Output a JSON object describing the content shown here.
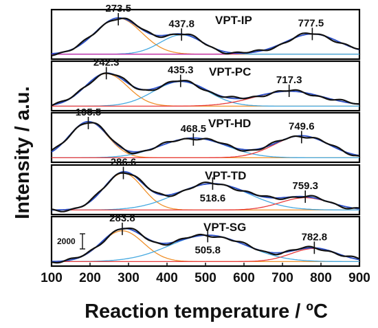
{
  "chart_data": {
    "type": "line",
    "xlabel": "Reaction temperature / ºC",
    "ylabel": "Intensity / a.u.",
    "xlim": [
      100,
      900
    ],
    "xticks": [
      100,
      200,
      300,
      400,
      500,
      600,
      700,
      800,
      900
    ],
    "scale_bar_label": "2000",
    "colors": {
      "measured": "#111111",
      "fitted_sum": "#2a4fc8",
      "peak_low": "#f0902a",
      "peak_mid": "#44a8e0",
      "peak_high": "#e83a3a",
      "peak_high_alt": "#c02aa8",
      "baseline": "#b8860b"
    },
    "panels": [
      {
        "name": "VPT-IP",
        "baseline": 0.05,
        "peaks": [
          {
            "label": "273.5",
            "center": 273.5,
            "height": 0.82,
            "width": 60
          },
          {
            "label": "437.8",
            "center": 437.8,
            "height": 0.44,
            "width": 55
          },
          {
            "label": "777.5",
            "center": 777.5,
            "height": 0.46,
            "width": 70
          }
        ]
      },
      {
        "name": "VPT-PC",
        "baseline": 0.04,
        "peaks": [
          {
            "label": "242.3",
            "center": 242.3,
            "height": 0.74,
            "width": 55
          },
          {
            "label": "435.3",
            "center": 435.3,
            "height": 0.56,
            "width": 70
          },
          {
            "label": "717.3",
            "center": 717.3,
            "height": 0.34,
            "width": 90
          }
        ]
      },
      {
        "name": "VPT-HD",
        "baseline": 0.04,
        "peaks": [
          {
            "label": "195.5",
            "center": 195.5,
            "height": 0.82,
            "width": 50
          },
          {
            "label": "468.5",
            "center": 468.5,
            "height": 0.45,
            "width": 85
          },
          {
            "label": "749.6",
            "center": 749.6,
            "height": 0.5,
            "width": 70
          }
        ]
      },
      {
        "name": "VPT-TD",
        "baseline": 0.04,
        "peaks": [
          {
            "label": "286.6",
            "center": 286.6,
            "height": 0.84,
            "width": 50
          },
          {
            "label": "518.6",
            "center": 518.6,
            "height": 0.6,
            "width": 95
          },
          {
            "label": "759.3",
            "center": 759.3,
            "height": 0.28,
            "width": 65
          }
        ]
      },
      {
        "name": "VPT-SG",
        "baseline": 0.04,
        "peaks": [
          {
            "label": "283.8",
            "center": 283.8,
            "height": 0.7,
            "width": 55
          },
          {
            "label": "505.8",
            "center": 505.8,
            "height": 0.6,
            "width": 100
          },
          {
            "label": "782.8",
            "center": 782.8,
            "height": 0.3,
            "width": 60
          }
        ]
      }
    ]
  }
}
